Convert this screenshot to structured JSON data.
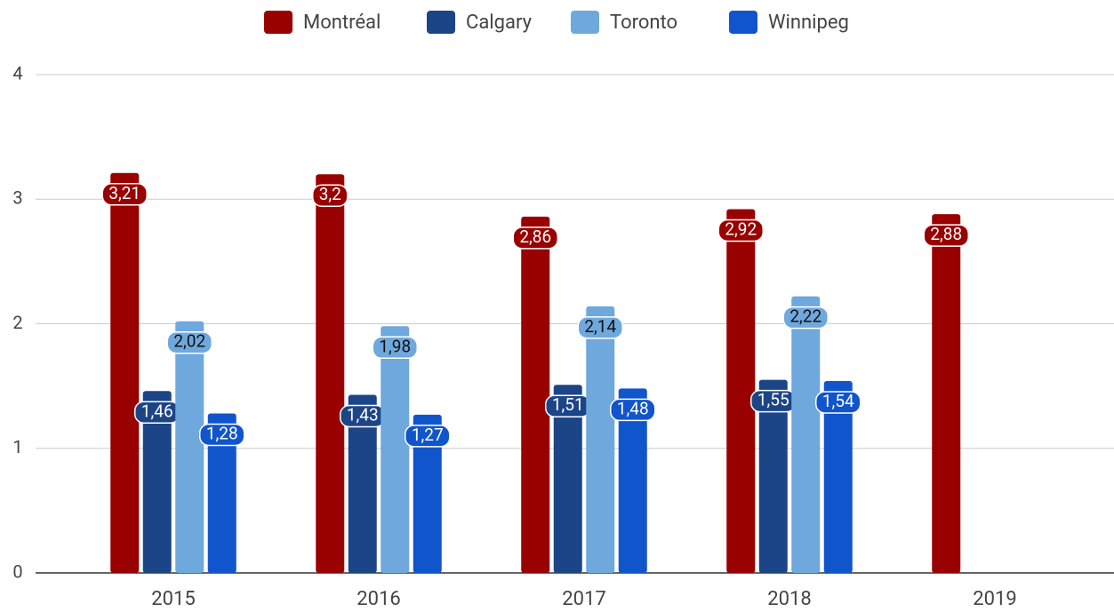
{
  "chart_data": {
    "type": "bar",
    "categories": [
      "2015",
      "2016",
      "2017",
      "2018",
      "2019"
    ],
    "series": [
      {
        "name": "Montréal",
        "color": "#990000",
        "values": [
          3.21,
          3.2,
          2.86,
          2.92,
          2.88
        ],
        "value_labels": [
          "3,21",
          "3,2",
          "2,86",
          "2,92",
          "2,88"
        ]
      },
      {
        "name": "Calgary",
        "color": "#1c4587",
        "values": [
          1.46,
          1.43,
          1.51,
          1.55,
          null
        ],
        "value_labels": [
          "1,46",
          "1,43",
          "1,51",
          "1,55",
          null
        ]
      },
      {
        "name": "Toronto",
        "color": "#6fa8dc",
        "values": [
          2.02,
          1.98,
          2.14,
          2.22,
          null
        ],
        "value_labels": [
          "2,02",
          "1,98",
          "2,14",
          "2,22",
          null
        ]
      },
      {
        "name": "Winnipeg",
        "color": "#1155cc",
        "values": [
          1.28,
          1.27,
          1.48,
          1.54,
          null
        ],
        "value_labels": [
          "1,28",
          "1,27",
          "1,48",
          "1,54",
          null
        ]
      }
    ],
    "ylim": [
      0,
      4
    ],
    "yticks": [
      0,
      1,
      2,
      3,
      4
    ],
    "grid": true,
    "legend": "top"
  }
}
